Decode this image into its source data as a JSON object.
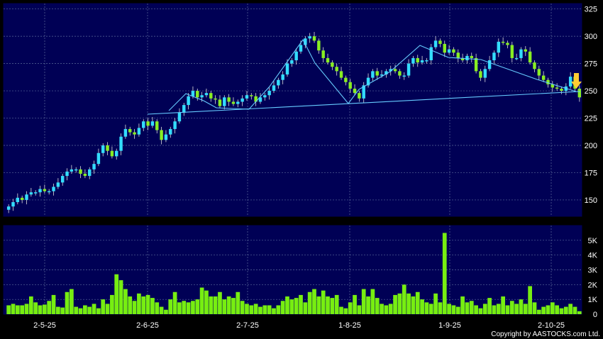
{
  "chart_data": [
    {
      "type": "candlestick",
      "ylim": [
        135,
        330
      ],
      "yticks": [
        150,
        175,
        200,
        225,
        250,
        275,
        300,
        325
      ],
      "xtick_labels": [
        "2-5-25",
        "2-6-25",
        "2-7-25",
        "1-8-25",
        "1-9-25",
        "2-10-25"
      ],
      "grid": true,
      "colors": {
        "up": "#33ddff",
        "down": "#88ee22",
        "background": "#000055",
        "grid": "#5a6a9a",
        "trendline": "#66ccff",
        "marker": "#ffcc33"
      },
      "close": [
        144,
        148,
        152,
        150,
        155,
        157,
        157,
        160,
        158,
        158,
        162,
        166,
        172,
        176,
        178,
        178,
        174,
        172,
        178,
        183,
        193,
        200,
        195,
        190,
        195,
        208,
        215,
        212,
        210,
        216,
        222,
        218,
        222,
        214,
        205,
        210,
        215,
        222,
        230,
        237,
        245,
        250,
        244,
        246,
        248,
        243,
        242,
        236,
        244,
        240,
        238,
        240,
        243,
        246,
        245,
        240,
        244,
        246,
        250,
        255,
        260,
        265,
        275,
        278,
        286,
        292,
        298,
        300,
        296,
        287,
        280,
        276,
        272,
        268,
        262,
        258,
        252,
        248,
        243,
        255,
        262,
        268,
        264,
        265,
        268,
        270,
        268,
        264,
        264,
        275,
        280,
        276,
        278,
        278,
        290,
        296,
        293,
        285,
        288,
        285,
        280,
        278,
        282,
        280,
        268,
        262,
        270,
        278,
        285,
        295,
        294,
        292,
        280,
        280,
        288,
        286,
        276,
        270,
        264,
        260,
        256,
        253,
        252,
        250,
        254,
        263,
        252,
        244
      ]
    },
    {
      "type": "bar",
      "name": "volume",
      "ylim": [
        0,
        6000
      ],
      "yticks": [
        0,
        1000,
        2000,
        3000,
        4000,
        5000
      ],
      "ytick_labels": [
        "0",
        "1K",
        "2K",
        "3K",
        "4K",
        "5K"
      ],
      "values": [
        600,
        700,
        600,
        600,
        700,
        1200,
        800,
        600,
        650,
        900,
        1300,
        500,
        450,
        1500,
        1700,
        500,
        400,
        600,
        500,
        700,
        400,
        1000,
        700,
        1300,
        2700,
        2300,
        1700,
        1200,
        900,
        1400,
        1200,
        1300,
        1100,
        800,
        500,
        300,
        1000,
        1500,
        800,
        900,
        800,
        900,
        1000,
        1800,
        1600,
        1200,
        1200,
        1500,
        1000,
        1200,
        1100,
        1500,
        900,
        700,
        600,
        700,
        500,
        600,
        600,
        400,
        600,
        900,
        1200,
        1000,
        1100,
        1300,
        800,
        1500,
        1700,
        1200,
        1600,
        1200,
        1100,
        1300,
        500,
        400,
        800,
        1300,
        600,
        1700,
        1200,
        1700,
        1100,
        700,
        600,
        700,
        1300,
        1400,
        2000,
        1400,
        1200,
        1500,
        1000,
        800,
        700,
        1400,
        800,
        5500,
        700,
        600,
        500,
        1200,
        800,
        900,
        600,
        400,
        700,
        1100,
        600,
        700,
        1200,
        600,
        900,
        700,
        1000,
        700,
        1900,
        800,
        300,
        500,
        600,
        800,
        600,
        400,
        500,
        700,
        500,
        200
      ]
    }
  ],
  "copyright": "Copyright by AASTOCKS.com Ltd."
}
